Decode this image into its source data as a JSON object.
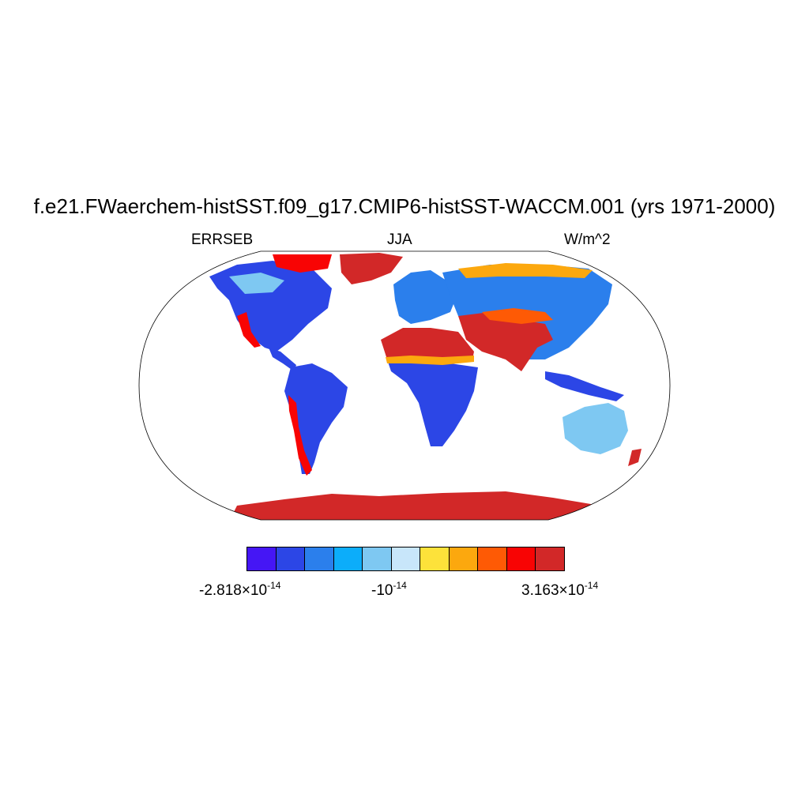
{
  "title": "f.e21.FWaerchem-histSST.f09_g17.CMIP6-histSST-WACCM.001 (yrs 1971-2000)",
  "left_label": "ERRSEB",
  "center_label": "JJA",
  "right_label": "W/m^2",
  "colorbar": {
    "colors": [
      "#4516f5",
      "#2c46e6",
      "#2b7fec",
      "#0cadfa",
      "#7ec8f2",
      "#c8e6fa",
      "#fde23a",
      "#fca80e",
      "#fe5a05",
      "#f80404",
      "#d22828"
    ],
    "labels": {
      "left": {
        "mantissa": "-2.818",
        "times": "×",
        "base": "10",
        "exp": "-14"
      },
      "mid": {
        "base": "-10",
        "exp": "-14"
      },
      "right": {
        "mantissa": "3.163",
        "times": "×",
        "base": "10",
        "exp": "-14"
      }
    }
  },
  "map": {
    "projection": "Robinson",
    "ocean_color": "#ffffff",
    "outline_color": "#000000"
  }
}
